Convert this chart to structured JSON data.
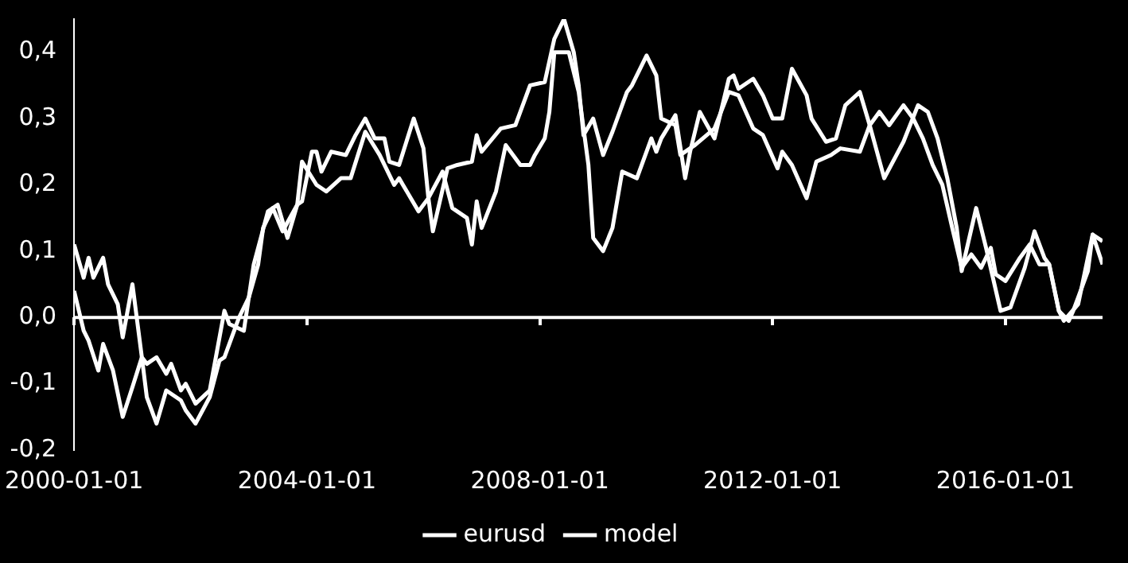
{
  "chart_data": {
    "type": "line",
    "xlim": [
      "2000-01-01",
      "2017-09-01"
    ],
    "xticks": [
      "2000-01-01",
      "2004-01-01",
      "2008-01-01",
      "2012-01-01",
      "2016-01-01"
    ],
    "ylim": [
      -0.2,
      0.45
    ],
    "yticks": [
      {
        "value": -0.2,
        "label": "-0,2"
      },
      {
        "value": -0.1,
        "label": "-0,1"
      },
      {
        "value": 0,
        "label": "0,0"
      },
      {
        "value": 0.1,
        "label": "0,1"
      },
      {
        "value": 0.2,
        "label": "0,2"
      },
      {
        "value": 0.3,
        "label": "0,3"
      },
      {
        "value": 0.4,
        "label": "0,4"
      }
    ],
    "grid": false,
    "ref_lines": [
      {
        "axis": "y",
        "value": 0,
        "color": "#ffffff",
        "line_style": "solid"
      }
    ],
    "legend": "bottom",
    "marker": "none",
    "line_style": "solid",
    "series": [
      {
        "name": "eurusd",
        "color": "#ffffff",
        "x": [
          "2000-01",
          "2000-03",
          "2000-04",
          "2000-05",
          "2000-07",
          "2000-08",
          "2000-10",
          "2000-11",
          "2001-01",
          "2001-03",
          "2001-04",
          "2001-06",
          "2001-08",
          "2001-09",
          "2001-11",
          "2001-12",
          "2002-02",
          "2002-05",
          "2002-08",
          "2002-09",
          "2002-12",
          "2003-02",
          "2003-05",
          "2003-07",
          "2003-09",
          "2003-11",
          "2003-12",
          "2004-02",
          "2004-03",
          "2004-04",
          "2004-06",
          "2004-09",
          "2004-11",
          "2005-01",
          "2005-03",
          "2005-05",
          "2005-06",
          "2005-08",
          "2005-11",
          "2006-01",
          "2006-02",
          "2006-03",
          "2006-06",
          "2006-08",
          "2006-11",
          "2006-12",
          "2007-01",
          "2007-05",
          "2007-08",
          "2007-11",
          "2008-02",
          "2008-04",
          "2008-06",
          "2008-08",
          "2008-09",
          "2008-10",
          "2008-12",
          "2009-02",
          "2009-04",
          "2009-07",
          "2009-08",
          "2009-11",
          "2010-01",
          "2010-02",
          "2010-05",
          "2010-06",
          "2010-09",
          "2011-01",
          "2011-04",
          "2011-06",
          "2011-09",
          "2011-11",
          "2012-02",
          "2012-03",
          "2012-05",
          "2012-08",
          "2012-10",
          "2013-01",
          "2013-03",
          "2013-07",
          "2013-09",
          "2013-11",
          "2014-01",
          "2014-04",
          "2014-06",
          "2014-08",
          "2014-10",
          "2014-12",
          "2015-02",
          "2015-04",
          "2015-06",
          "2015-08",
          "2015-10",
          "2015-11",
          "2016-01",
          "2016-04",
          "2016-06",
          "2016-08",
          "2016-10",
          "2016-12",
          "2017-01",
          "2017-04",
          "2017-07",
          "2017-09"
        ],
        "values": [
          0.11,
          0.06,
          0.09,
          0.06,
          0.09,
          0.05,
          0.02,
          -0.03,
          0.05,
          -0.06,
          -0.07,
          -0.06,
          -0.085,
          -0.07,
          -0.11,
          -0.1,
          -0.13,
          -0.11,
          0.01,
          -0.01,
          -0.02,
          0.08,
          0.16,
          0.17,
          0.12,
          0.17,
          0.175,
          0.25,
          0.25,
          0.22,
          0.25,
          0.245,
          0.275,
          0.3,
          0.27,
          0.27,
          0.235,
          0.23,
          0.3,
          0.255,
          0.18,
          0.13,
          0.225,
          0.23,
          0.235,
          0.275,
          0.25,
          0.285,
          0.29,
          0.35,
          0.355,
          0.42,
          0.45,
          0.4,
          0.35,
          0.275,
          0.3,
          0.245,
          0.28,
          0.34,
          0.35,
          0.395,
          0.365,
          0.3,
          0.29,
          0.245,
          0.26,
          0.285,
          0.34,
          0.335,
          0.285,
          0.275,
          0.225,
          0.25,
          0.23,
          0.18,
          0.235,
          0.245,
          0.255,
          0.25,
          0.29,
          0.31,
          0.29,
          0.32,
          0.3,
          0.27,
          0.23,
          0.2,
          0.135,
          0.075,
          0.095,
          0.075,
          0.105,
          0.065,
          0.055,
          0.09,
          0.11,
          0.08,
          0.08,
          0.01,
          -0.005,
          0.02,
          0.125,
          0.115
        ]
      },
      {
        "name": "model",
        "color": "#ffffff",
        "x": [
          "2000-01",
          "2000-03",
          "2000-04",
          "2000-06",
          "2000-07",
          "2000-09",
          "2000-11",
          "2001-01",
          "2001-03",
          "2001-04",
          "2001-06",
          "2001-08",
          "2001-11",
          "2001-12",
          "2002-02",
          "2002-05",
          "2002-07",
          "2002-08",
          "2002-11",
          "2003-01",
          "2003-03",
          "2003-04",
          "2003-06",
          "2003-08",
          "2003-11",
          "2003-12",
          "2004-03",
          "2004-05",
          "2004-08",
          "2004-10",
          "2005-01",
          "2005-04",
          "2005-07",
          "2005-08",
          "2005-12",
          "2006-02",
          "2006-05",
          "2006-07",
          "2006-10",
          "2006-11",
          "2006-12",
          "2007-01",
          "2007-04",
          "2007-06",
          "2007-09",
          "2007-11",
          "2007-12",
          "2008-02",
          "2008-03",
          "2008-04",
          "2008-07",
          "2008-09",
          "2008-11",
          "2008-12",
          "2009-02",
          "2009-04",
          "2009-06",
          "2009-09",
          "2009-12",
          "2010-01",
          "2010-02",
          "2010-05",
          "2010-07",
          "2010-08",
          "2010-10",
          "2011-01",
          "2011-04",
          "2011-05",
          "2011-06",
          "2011-09",
          "2011-11",
          "2012-01",
          "2012-03",
          "2012-05",
          "2012-08",
          "2012-09",
          "2012-12",
          "2013-02",
          "2013-04",
          "2013-07",
          "2013-09",
          "2013-12",
          "2014-04",
          "2014-07",
          "2014-09",
          "2014-11",
          "2015-01",
          "2015-03",
          "2015-04",
          "2015-07",
          "2015-09",
          "2015-12",
          "2016-02",
          "2016-05",
          "2016-07",
          "2016-09",
          "2016-10",
          "2016-12",
          "2017-02",
          "2017-03",
          "2017-04",
          "2017-06",
          "2017-07",
          "2017-09"
        ],
        "values": [
          0.04,
          -0.02,
          -0.035,
          -0.08,
          -0.04,
          -0.08,
          -0.15,
          -0.105,
          -0.06,
          -0.12,
          -0.16,
          -0.11,
          -0.125,
          -0.14,
          -0.16,
          -0.12,
          -0.065,
          -0.06,
          0.0,
          0.03,
          0.08,
          0.135,
          0.165,
          0.13,
          0.17,
          0.235,
          0.2,
          0.19,
          0.21,
          0.21,
          0.28,
          0.245,
          0.2,
          0.21,
          0.16,
          0.18,
          0.22,
          0.165,
          0.15,
          0.11,
          0.175,
          0.135,
          0.19,
          0.26,
          0.23,
          0.23,
          0.245,
          0.27,
          0.31,
          0.4,
          0.4,
          0.34,
          0.23,
          0.12,
          0.1,
          0.135,
          0.22,
          0.21,
          0.27,
          0.25,
          0.27,
          0.305,
          0.21,
          0.25,
          0.31,
          0.27,
          0.36,
          0.365,
          0.345,
          0.36,
          0.335,
          0.3,
          0.3,
          0.375,
          0.335,
          0.3,
          0.265,
          0.27,
          0.32,
          0.34,
          0.29,
          0.21,
          0.265,
          0.32,
          0.31,
          0.27,
          0.21,
          0.135,
          0.07,
          0.165,
          0.105,
          0.01,
          0.015,
          0.075,
          0.13,
          0.09,
          0.08,
          0.01,
          -0.005,
          0.01,
          0.03,
          0.07,
          0.125,
          0.08
        ]
      }
    ]
  }
}
